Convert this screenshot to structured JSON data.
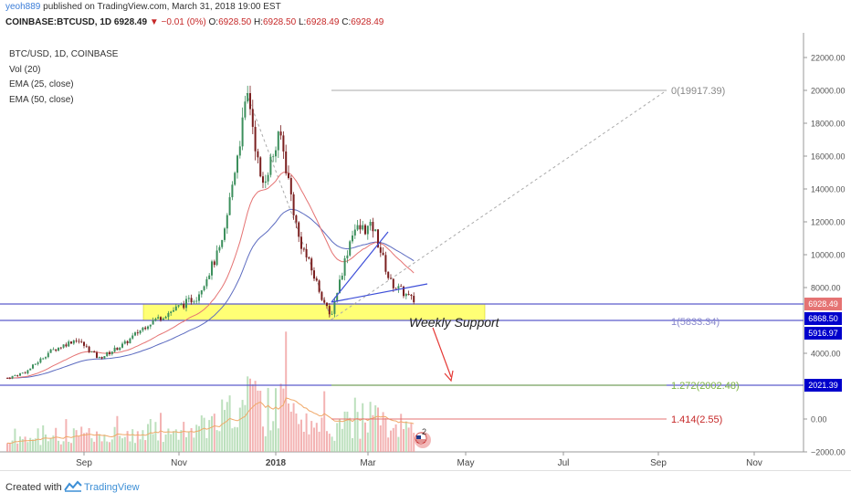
{
  "header": {
    "username": "yeoh889",
    "published": "published on TradingView.com, March 31, 2018 19:00 EST"
  },
  "ohlc": {
    "symbol": "COINBASE:BTCUSD, 1D",
    "last": "6928.49",
    "change": "▼ −0.01 (0%)",
    "o_label": "O:",
    "o": "6928.50",
    "h_label": "H:",
    "h": "6928.50",
    "l_label": "L:",
    "l": "6928.49",
    "c_label": "C:",
    "c": "6928.49"
  },
  "legend": {
    "symbol": "BTC/USD, 1D, COINBASE",
    "vol": "Vol (20)",
    "ema25": "EMA (25, close)",
    "ema50": "EMA (50, close)"
  },
  "annotations": {
    "weekly_support": "Weekly Support",
    "fib_0": "0(19917.39)",
    "fib_1": "1(5833.34)",
    "fib_1272": "1.272(2002.48)",
    "fib_1414": "1.414(2.55)",
    "event_count": "2"
  },
  "price_labels": {
    "last": "6928.49",
    "level_a": "6868.50",
    "level_b": "5916.97",
    "level_c": "2021.39"
  },
  "footer": {
    "created": "Created with",
    "brand": "TradingView"
  },
  "colors": {
    "up": "#3c8f5c",
    "down": "#7a1f1f",
    "ema25": "#e57373",
    "ema50": "#5c6bc0",
    "support_zone": "#ffff66",
    "level_line": "#5c5ccc",
    "fib_1414": "#c62828",
    "fib_1272": "#7cb342",
    "arrow": "#e53935",
    "label_blue": "#0000cc",
    "label_purple": "#7e57c2"
  },
  "chart_data": {
    "type": "line",
    "title": "BTC/USD, 1D, COINBASE",
    "x_ticks": [
      "Sep",
      "Nov",
      "2018",
      "Mar",
      "May",
      "Jul",
      "Sep",
      "Nov"
    ],
    "y_ticks": [
      "22000.00",
      "20000.00",
      "18000.00",
      "16000.00",
      "14000.00",
      "12000.00",
      "10000.00",
      "8000.00",
      "4000.00",
      "0.00",
      "−2000.00"
    ],
    "ylim": [
      -2000,
      22000
    ],
    "series": [
      {
        "name": "BTC/USD",
        "x": [
          "2017-07-20",
          "2017-08-01",
          "2017-08-15",
          "2017-09-01",
          "2017-09-15",
          "2017-10-01",
          "2017-10-15",
          "2017-11-01",
          "2017-11-15",
          "2017-12-01",
          "2017-12-10",
          "2017-12-17",
          "2017-12-25",
          "2018-01-06",
          "2018-01-17",
          "2018-02-06",
          "2018-02-20",
          "2018-03-05",
          "2018-03-15",
          "2018-03-31"
        ],
        "values": [
          2300,
          2700,
          3900,
          4700,
          3500,
          4400,
          5600,
          6500,
          7300,
          10500,
          16000,
          19800,
          14000,
          17200,
          11000,
          6000,
          11400,
          11500,
          8200,
          6928
        ]
      }
    ],
    "levels": [
      {
        "label": "0(19917.39)",
        "value": 19917.39
      },
      {
        "label": "1(5833.34)",
        "value": 5833.34
      },
      {
        "label": "1.272(2002.48)",
        "value": 2002.48
      },
      {
        "label": "1.414(2.55)",
        "value": 2.55
      }
    ],
    "support_zone": {
      "label": "Weekly Support",
      "low": 5870,
      "high": 6900
    },
    "grid": false,
    "legend": "top-left"
  }
}
